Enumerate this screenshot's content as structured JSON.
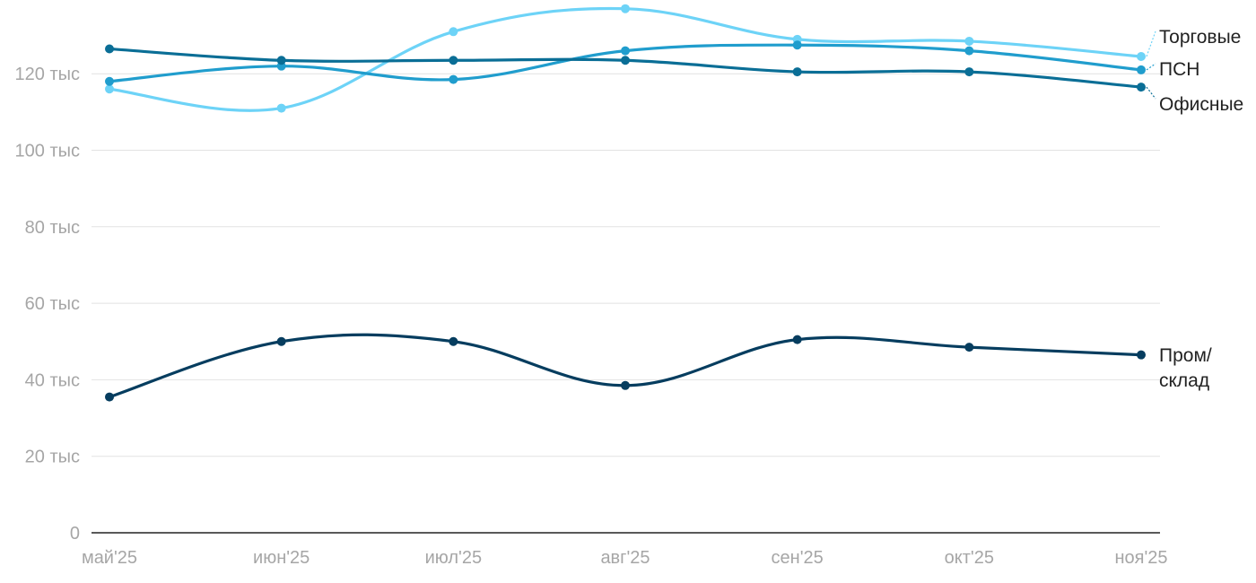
{
  "chart_data": {
    "type": "line",
    "title": "",
    "xlabel": "",
    "ylabel": "",
    "categories": [
      "май'25",
      "июн'25",
      "июл'25",
      "авг'25",
      "сен'25",
      "окт'25",
      "ноя'25"
    ],
    "ylim": [
      0,
      140000
    ],
    "yticks": [
      {
        "value": 0,
        "label": "0"
      },
      {
        "value": 20000,
        "label": "20 тыс"
      },
      {
        "value": 40000,
        "label": "40 тыс"
      },
      {
        "value": 60000,
        "label": "60 тыс"
      },
      {
        "value": 80000,
        "label": "80 тыс"
      },
      {
        "value": 100000,
        "label": "100 тыс"
      },
      {
        "value": 120000,
        "label": "120 тыс"
      }
    ],
    "grid": true,
    "legend": "end-of-line labels",
    "series": [
      {
        "name": "Торговые",
        "color": "#6dd3f7",
        "values": [
          116000,
          111000,
          131000,
          137000,
          129000,
          128500,
          124500
        ]
      },
      {
        "name": "ПСН",
        "color": "#209dcd",
        "values": [
          118000,
          122000,
          118500,
          126000,
          127500,
          126000,
          121000
        ]
      },
      {
        "name": "Офисные",
        "color": "#0a6e96",
        "values": [
          126500,
          123500,
          123500,
          123500,
          120500,
          120500,
          116500
        ]
      },
      {
        "name": "Пром/\nсклад",
        "color": "#063d5f",
        "values": [
          35500,
          50000,
          50000,
          38500,
          50500,
          48500,
          46500
        ]
      }
    ]
  }
}
